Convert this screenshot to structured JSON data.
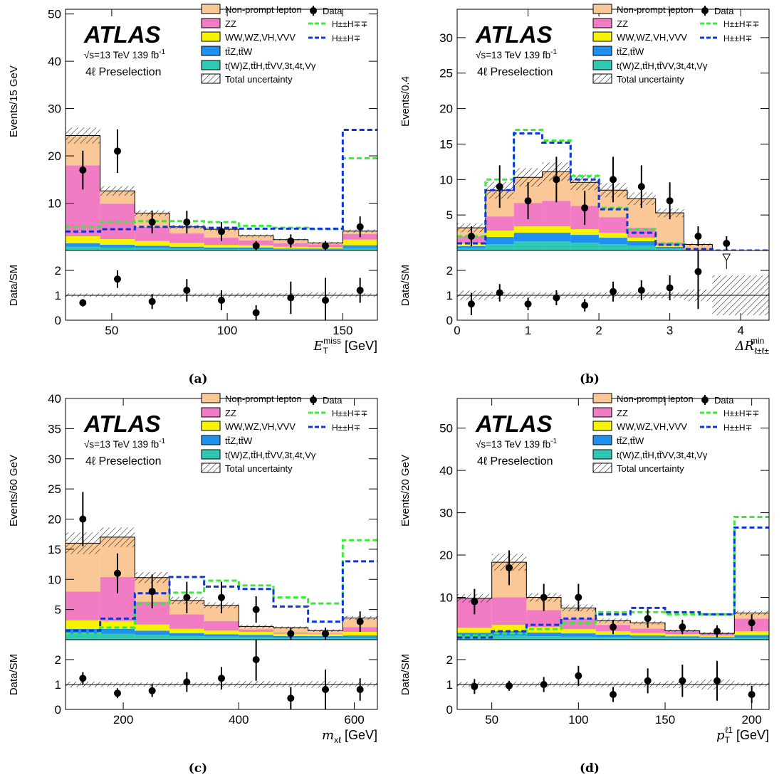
{
  "common": {
    "atlas_label": "ATLAS",
    "energy_label": "√s=13 TeV 139 fb",
    "energy_sup": "-1",
    "selection_label": "4ℓ Preselection",
    "ratio_ylabel": "Data/SM",
    "legend": {
      "nonprompt": "Non-prompt lepton",
      "data": "Data",
      "zz": "ZZ",
      "hpp_mm": "H±±H∓∓",
      "ww": "WW,WZ,VH,VVV",
      "hpp_m": "H±±H∓",
      "ttz": "tt̄Z,tt̄W",
      "other": "t(W)Z,tt̄H,tt̄VV,3t,4t,Vγ",
      "unc": "Total uncertainty"
    },
    "colors": {
      "nonprompt": "#f9c896",
      "zz": "#f27cc3",
      "ww": "#f5f300",
      "ttz": "#1f8ff0",
      "other": "#2fc8b3",
      "hpp_mm": "#33ee33",
      "hpp_m": "#1133dd"
    }
  },
  "chart_data": [
    {
      "type": "bar",
      "caption": "(a)",
      "ylabel": "Events/15 GeV",
      "xlabel": "E_T^miss [GeV]",
      "xlabel_parts": {
        "sym": "E",
        "sub": "T",
        "sup": "miss",
        "unit": " [GeV]"
      },
      "xlim": [
        30,
        165
      ],
      "ylim": [
        0,
        51
      ],
      "yticks": [
        10,
        20,
        30,
        40,
        50
      ],
      "xticks": [
        50,
        100,
        150
      ],
      "ratio_ylim": [
        0,
        2.8
      ],
      "ratio_yticks": [
        0,
        1,
        2
      ],
      "bin_edges": [
        30,
        45,
        60,
        75,
        90,
        105,
        120,
        135,
        150,
        165
      ],
      "other": [
        0.8,
        0.6,
        0.5,
        0.4,
        0.3,
        0.3,
        0.2,
        0.2,
        0.5
      ],
      "ttz": [
        0.7,
        0.6,
        0.5,
        0.4,
        0.3,
        0.3,
        0.2,
        0.2,
        0.6
      ],
      "ww": [
        1.5,
        1.2,
        1.0,
        0.8,
        0.6,
        0.5,
        0.4,
        0.3,
        1.2
      ],
      "zz": [
        15.0,
        7.5,
        3.0,
        2.0,
        1.5,
        1.0,
        0.7,
        0.6,
        1.2
      ],
      "nonprompt": [
        6.3,
        2.7,
        2.9,
        1.4,
        1.8,
        1.0,
        0.8,
        0.3,
        0.6
      ],
      "unc": [
        1.7,
        1.0,
        0.6,
        0.4,
        0.4,
        0.3,
        0.2,
        0.2,
        0.3
      ],
      "hpp_mm": [
        5.0,
        6.0,
        6.2,
        6.2,
        6.0,
        5.2,
        4.8,
        4.5,
        19.5
      ],
      "hpp_m": [
        4.0,
        4.5,
        5.0,
        5.0,
        4.8,
        4.6,
        4.6,
        4.6,
        25.5
      ],
      "data_x": [
        37.5,
        52.5,
        67.5,
        82.5,
        97.5,
        112.5,
        127.5,
        142.5,
        157.5
      ],
      "data_y": [
        17,
        21,
        6,
        6,
        4,
        1,
        2,
        1,
        5
      ],
      "data_err": [
        4.1,
        4.6,
        2.4,
        2.4,
        2.0,
        1.0,
        1.4,
        1.0,
        2.2
      ],
      "ratio_y": [
        0.7,
        1.65,
        0.75,
        1.2,
        0.8,
        0.3,
        0.9,
        0.8,
        1.2
      ],
      "ratio_err": [
        0.15,
        0.35,
        0.3,
        0.45,
        0.4,
        0.3,
        0.65,
        0.9,
        0.5
      ]
    },
    {
      "type": "bar",
      "caption": "(b)",
      "ylabel": "Events/0.4",
      "xlabel": "ΔR_ℓ±ℓ±^min",
      "xlabel_parts": {
        "sym": "ΔR",
        "sub": "ℓ±ℓ±",
        "sup": "min",
        "unit": ""
      },
      "xlim": [
        0,
        4.4
      ],
      "ylim": [
        0,
        34
      ],
      "yticks": [
        5,
        10,
        15,
        20,
        25,
        30
      ],
      "xticks": [
        0,
        1,
        2,
        3,
        4
      ],
      "ratio_ylim": [
        0,
        2.8
      ],
      "ratio_yticks": [
        0,
        1,
        2
      ],
      "bin_edges": [
        0,
        0.4,
        0.8,
        1.2,
        1.6,
        2.0,
        2.4,
        2.8,
        3.2,
        3.6,
        4.0,
        4.4
      ],
      "other": [
        0.3,
        0.9,
        1.3,
        1.3,
        1.1,
        0.9,
        0.7,
        0.3,
        0.05,
        0.0,
        0.0
      ],
      "ttz": [
        0.3,
        1.0,
        1.2,
        1.2,
        1.1,
        0.9,
        0.6,
        0.2,
        0.05,
        0.0,
        0.0
      ],
      "ww": [
        0.4,
        0.9,
        0.9,
        0.9,
        0.8,
        0.7,
        0.5,
        0.2,
        0.05,
        0.0,
        0.0
      ],
      "zz": [
        1.0,
        2.0,
        3.3,
        3.6,
        3.3,
        2.2,
        1.4,
        0.4,
        0.1,
        0.0,
        0.0
      ],
      "nonprompt": [
        1.2,
        3.7,
        3.6,
        4.1,
        3.3,
        3.8,
        4.1,
        4.2,
        0.6,
        0.0,
        0.0
      ],
      "unc": [
        0.6,
        1.2,
        1.3,
        1.3,
        1.1,
        1.0,
        0.9,
        0.6,
        0.2,
        0.0,
        0.0
      ],
      "hpp_mm": [
        2.0,
        10.0,
        17.0,
        15.5,
        10.5,
        6.0,
        3.0,
        1.0,
        0.2,
        0.0,
        0.0
      ],
      "hpp_m": [
        1.0,
        8.5,
        16.5,
        15.2,
        10.0,
        5.8,
        2.5,
        0.8,
        0.2,
        0.0,
        0.0
      ],
      "data_x": [
        0.2,
        0.6,
        1.0,
        1.4,
        1.8,
        2.2,
        2.6,
        3.0,
        3.4,
        3.8
      ],
      "data_y": [
        2,
        9,
        7,
        10,
        6,
        10,
        9,
        7,
        2,
        1
      ],
      "data_err": [
        1.4,
        3.0,
        2.6,
        3.2,
        2.4,
        3.2,
        3.0,
        2.6,
        1.4,
        1.0
      ],
      "ratio_y": [
        0.65,
        1.1,
        0.65,
        0.9,
        0.6,
        1.15,
        1.2,
        1.3,
        1.95
      ],
      "ratio_err": [
        0.45,
        0.35,
        0.25,
        0.3,
        0.25,
        0.4,
        0.4,
        0.5,
        1.5
      ],
      "ratio_arrow_x": 3.8
    },
    {
      "type": "bar",
      "caption": "(c)",
      "ylabel": "Events/60 GeV",
      "xlabel": "m_xℓ [GeV]",
      "xlabel_parts": {
        "sym": "m",
        "sub": "xℓ",
        "sup": "",
        "unit": " [GeV]"
      },
      "xlim": [
        100,
        640
      ],
      "ylim": [
        0,
        40
      ],
      "yticks": [
        5,
        10,
        15,
        20,
        25,
        30,
        35,
        40
      ],
      "xticks": [
        200,
        400,
        600
      ],
      "ratio_ylim": [
        0,
        2.8
      ],
      "ratio_yticks": [
        0,
        1,
        2
      ],
      "bin_edges": [
        100,
        160,
        220,
        280,
        340,
        400,
        460,
        520,
        580,
        640
      ],
      "other": [
        1.0,
        1.0,
        0.8,
        0.6,
        0.5,
        0.4,
        0.3,
        0.3,
        0.3
      ],
      "ttz": [
        0.8,
        0.8,
        0.7,
        0.5,
        0.4,
        0.4,
        0.3,
        0.3,
        0.4
      ],
      "ww": [
        1.4,
        1.3,
        1.0,
        0.7,
        0.6,
        0.5,
        0.4,
        0.3,
        0.6
      ],
      "zz": [
        4.8,
        7.3,
        3.8,
        2.4,
        1.6,
        0.4,
        0.2,
        0.1,
        0.8
      ],
      "nonprompt": [
        8.0,
        6.6,
        4.0,
        2.3,
        2.6,
        0.5,
        0.8,
        0.5,
        1.5
      ],
      "unc": [
        1.8,
        1.6,
        0.9,
        0.6,
        0.5,
        0.3,
        0.2,
        0.2,
        0.3
      ],
      "hpp_mm": [
        1.0,
        2.0,
        6.0,
        7.8,
        9.8,
        9.0,
        7.0,
        6.0,
        16.5
      ],
      "hpp_m": [
        1.5,
        3.5,
        7.7,
        10.4,
        8.8,
        8.4,
        5.5,
        3.0,
        13.0
      ],
      "data_x": [
        130,
        190,
        250,
        310,
        370,
        430,
        490,
        550,
        610
      ],
      "data_y": [
        20,
        11,
        8,
        7,
        7,
        5,
        1,
        1,
        3
      ],
      "data_err": [
        4.5,
        3.3,
        2.8,
        2.6,
        2.6,
        2.2,
        1.0,
        1.0,
        1.7
      ],
      "ratio_y": [
        1.25,
        0.65,
        0.75,
        1.1,
        1.25,
        2.0,
        0.45,
        0.8,
        0.8
      ],
      "ratio_err": [
        0.25,
        0.2,
        0.25,
        0.4,
        0.45,
        0.85,
        0.45,
        0.8,
        0.45
      ]
    },
    {
      "type": "bar",
      "caption": "(d)",
      "ylabel": "Events/20 GeV",
      "xlabel": "p_T^ℓ1 [GeV]",
      "xlabel_parts": {
        "sym": "p",
        "sub": "T",
        "sup": "ℓ1",
        "unit": " [GeV]"
      },
      "xlim": [
        30,
        210
      ],
      "ylim": [
        0,
        57
      ],
      "yticks": [
        10,
        20,
        30,
        40,
        50
      ],
      "xticks": [
        50,
        100,
        150,
        200
      ],
      "ratio_ylim": [
        0,
        2.8
      ],
      "ratio_yticks": [
        0,
        1,
        2
      ],
      "bin_edges": [
        30,
        50,
        70,
        90,
        110,
        130,
        150,
        170,
        190,
        210
      ],
      "other": [
        0.8,
        1.0,
        0.8,
        0.7,
        0.6,
        0.5,
        0.4,
        0.3,
        0.5
      ],
      "ttz": [
        0.8,
        1.0,
        0.9,
        0.8,
        0.6,
        0.5,
        0.4,
        0.3,
        0.6
      ],
      "ww": [
        1.2,
        1.5,
        1.3,
        1.0,
        0.8,
        0.6,
        0.5,
        0.4,
        0.9
      ],
      "zz": [
        7.0,
        6.5,
        4.0,
        2.5,
        1.5,
        1.0,
        0.8,
        0.5,
        3.0
      ],
      "nonprompt": [
        0.0,
        8.3,
        3.0,
        2.5,
        1.0,
        1.4,
        0.0,
        0.0,
        1.3
      ],
      "unc": [
        1.0,
        2.0,
        1.0,
        0.8,
        0.5,
        0.4,
        0.3,
        0.3,
        0.5
      ],
      "hpp_mm": [
        1.0,
        1.5,
        2.5,
        4.0,
        6.5,
        6.5,
        6.0,
        6.0,
        29.0
      ],
      "hpp_m": [
        0.5,
        2.0,
        3.5,
        5.0,
        6.0,
        7.5,
        6.5,
        6.0,
        26.5
      ],
      "data_x": [
        40,
        60,
        80,
        100,
        120,
        140,
        160,
        180,
        200
      ],
      "data_y": [
        9,
        17,
        10,
        10,
        3,
        5,
        3,
        2,
        4
      ],
      "data_err": [
        3.0,
        4.1,
        3.2,
        3.2,
        1.7,
        2.2,
        1.7,
        1.4,
        2.0
      ],
      "ratio_y": [
        0.92,
        0.95,
        1.0,
        1.35,
        0.6,
        1.15,
        1.15,
        1.15,
        0.6
      ],
      "ratio_err": [
        0.3,
        0.2,
        0.3,
        0.4,
        0.3,
        0.5,
        0.65,
        0.8,
        0.35
      ]
    }
  ]
}
